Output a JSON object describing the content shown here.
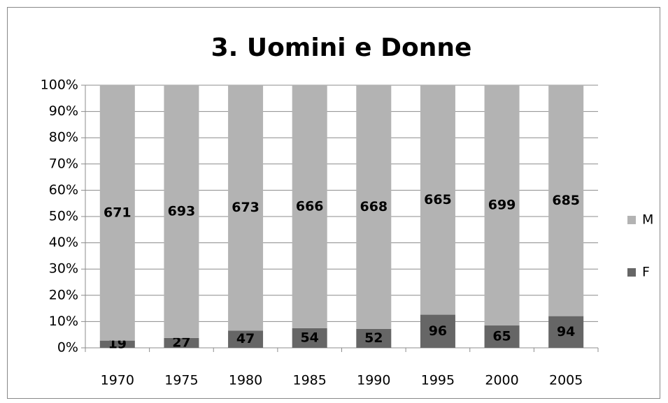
{
  "chart_data": {
    "type": "bar",
    "stacking": "percent",
    "title": "3. Uomini e Donne",
    "categories": [
      "1970",
      "1975",
      "1980",
      "1985",
      "1990",
      "1995",
      "2000",
      "2005"
    ],
    "series": [
      {
        "name": "F",
        "color": "#666666",
        "values": [
          19,
          27,
          47,
          54,
          52,
          96,
          65,
          94
        ]
      },
      {
        "name": "M",
        "color": "#b3b3b3",
        "values": [
          671,
          693,
          673,
          666,
          668,
          665,
          699,
          685
        ]
      }
    ],
    "ylim": [
      0,
      100
    ],
    "yticks": [
      {
        "value": 0,
        "label": "0%"
      },
      {
        "value": 10,
        "label": "10%"
      },
      {
        "value": 20,
        "label": "20%"
      },
      {
        "value": 30,
        "label": "30%"
      },
      {
        "value": 40,
        "label": "40%"
      },
      {
        "value": 50,
        "label": "50%"
      },
      {
        "value": 60,
        "label": "60%"
      },
      {
        "value": 70,
        "label": "70%"
      },
      {
        "value": 80,
        "label": "80%"
      },
      {
        "value": 90,
        "label": "90%"
      },
      {
        "value": 100,
        "label": "100%"
      }
    ],
    "grid": true,
    "legend": "right"
  }
}
